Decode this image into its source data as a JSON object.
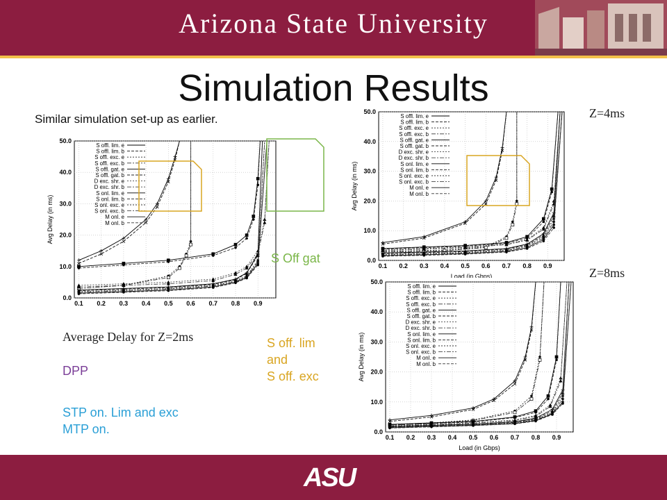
{
  "header": {
    "university": "Arizona State University",
    "logo_text": "ASU",
    "title": "Simulation Results",
    "subtitle": "Similar simulation set-up as earlier."
  },
  "labels": {
    "z2": "Average Delay for Z=2ms",
    "z4": "Z=4ms",
    "z8": "Z=8ms"
  },
  "annotations": {
    "s_off_gat": "S Off gat",
    "s_off_lim_line1": "S off. lim",
    "s_off_lim_line2": "and",
    "s_off_lim_line3": "S off. exc",
    "dpp": "DPP",
    "stp_line1": "STP on. Lim and exc",
    "stp_line2": "MTP on."
  },
  "colors": {
    "maroon": "#8c1d40",
    "gold": "#f2c04a",
    "annotation_green": "#7ab648",
    "annotation_gold": "#d9a521",
    "annotation_purple": "#7b3f98",
    "annotation_blue": "#2a9fd6"
  },
  "chart_data": [
    {
      "type": "line",
      "xlabel": "",
      "ylabel": "Avg Delay (in ms)",
      "x_ticks": [
        "0.1",
        "0.2",
        "0.3",
        "0.4",
        "0.5",
        "0.6",
        "0.7",
        "0.8",
        "0.9"
      ],
      "y_ticks": [
        "0.0",
        "10.0",
        "20.0",
        "30.0",
        "40.0",
        "50.0"
      ],
      "xlim": [
        0.08,
        0.98
      ],
      "ylim": [
        0,
        50
      ],
      "grid": true,
      "legend_position": "top-left",
      "series": [
        {
          "name": "S offl. lim. e",
          "x": [
            0.1,
            0.2,
            0.3,
            0.4,
            0.45,
            0.5,
            0.53,
            0.55
          ],
          "y": [
            12,
            15,
            19,
            25,
            30,
            38,
            45,
            50
          ]
        },
        {
          "name": "S offl. lim. b",
          "x": [
            0.1,
            0.2,
            0.3,
            0.4,
            0.45,
            0.5,
            0.53,
            0.55
          ],
          "y": [
            11,
            14,
            18,
            24,
            29,
            37,
            44,
            50
          ]
        },
        {
          "name": "S offl. exc. e",
          "x": [
            0.1,
            0.3,
            0.5,
            0.55,
            0.58,
            0.6,
            0.6
          ],
          "y": [
            3,
            4,
            7,
            10,
            14,
            18,
            50
          ]
        },
        {
          "name": "S offl. exc. b",
          "x": [
            0.1,
            0.3,
            0.5,
            0.55,
            0.58,
            0.6,
            0.6
          ],
          "y": [
            3,
            4,
            6.5,
            9.5,
            13.5,
            17,
            50
          ]
        },
        {
          "name": "S offl. gat. e",
          "x": [
            0.1,
            0.3,
            0.5,
            0.7,
            0.8,
            0.85,
            0.88,
            0.9,
            0.91
          ],
          "y": [
            10,
            11,
            12,
            14,
            17,
            20,
            26,
            38,
            50
          ]
        },
        {
          "name": "S offl. gat. b",
          "x": [
            0.1,
            0.3,
            0.5,
            0.7,
            0.8,
            0.85,
            0.88,
            0.9,
            0.91
          ],
          "y": [
            9.5,
            10.5,
            11.5,
            13.5,
            16,
            19,
            25,
            36,
            50
          ]
        },
        {
          "name": "D exc. shr. e",
          "x": [
            0.1,
            0.3,
            0.5,
            0.7,
            0.8,
            0.85,
            0.9,
            0.93,
            0.95
          ],
          "y": [
            4,
            4.5,
            5,
            6,
            8,
            10,
            15,
            25,
            50
          ]
        },
        {
          "name": "D exc. shr. b",
          "x": [
            0.1,
            0.3,
            0.5,
            0.7,
            0.8,
            0.85,
            0.9,
            0.93,
            0.95
          ],
          "y": [
            3.5,
            4,
            4.5,
            5.5,
            7.5,
            9.5,
            14,
            24,
            50
          ]
        },
        {
          "name": "S onl. lim. e",
          "x": [
            0.1,
            0.3,
            0.5,
            0.7,
            0.8,
            0.85,
            0.9,
            0.92
          ],
          "y": [
            2.5,
            3,
            3.5,
            4.5,
            6,
            8,
            14,
            50
          ]
        },
        {
          "name": "S onl. lim. b",
          "x": [
            0.1,
            0.3,
            0.5,
            0.7,
            0.8,
            0.85,
            0.9,
            0.92
          ],
          "y": [
            2.3,
            2.8,
            3.3,
            4.3,
            5.8,
            7.8,
            13.5,
            50
          ]
        },
        {
          "name": "S onl. exc. e",
          "x": [
            0.1,
            0.3,
            0.5,
            0.7,
            0.8,
            0.85,
            0.9,
            0.93
          ],
          "y": [
            2,
            2.5,
            3,
            4,
            5.5,
            7,
            12,
            50
          ]
        },
        {
          "name": "S onl. exc. b",
          "x": [
            0.1,
            0.3,
            0.5,
            0.7,
            0.8,
            0.85,
            0.9,
            0.93
          ],
          "y": [
            1.8,
            2.3,
            2.8,
            3.8,
            5.2,
            6.8,
            11.5,
            50
          ]
        },
        {
          "name": "M onl. e",
          "x": [
            0.1,
            0.3,
            0.5,
            0.7,
            0.8,
            0.85,
            0.9,
            0.94
          ],
          "y": [
            1.5,
            2,
            2.5,
            3.5,
            5,
            6.5,
            11,
            50
          ]
        },
        {
          "name": "M onl. b",
          "x": [
            0.1,
            0.3,
            0.5,
            0.7,
            0.8,
            0.85,
            0.9,
            0.94
          ],
          "y": [
            1.3,
            1.8,
            2.3,
            3.3,
            4.8,
            6.3,
            10.5,
            50
          ]
        }
      ]
    },
    {
      "type": "line",
      "xlabel": "Load (in Gbps)",
      "ylabel": "Avg Delay (in ms)",
      "x_ticks": [
        "0.1",
        "0.2",
        "0.3",
        "0.4",
        "0.5",
        "0.6",
        "0.7",
        "0.8",
        "0.9"
      ],
      "y_ticks": [
        "0.0",
        "10.0",
        "20.0",
        "30.0",
        "40.0",
        "50.0"
      ],
      "xlim": [
        0.08,
        0.98
      ],
      "ylim": [
        0,
        50
      ],
      "grid": true,
      "legend_position": "top-left",
      "series": [
        {
          "name": "S offl. lim. e",
          "x": [
            0.1,
            0.3,
            0.5,
            0.6,
            0.65,
            0.68,
            0.7
          ],
          "y": [
            6,
            8,
            13,
            20,
            28,
            38,
            50
          ]
        },
        {
          "name": "S offl. lim. b",
          "x": [
            0.1,
            0.3,
            0.5,
            0.6,
            0.65,
            0.68,
            0.7
          ],
          "y": [
            5.5,
            7.5,
            12.5,
            19,
            27,
            37,
            50
          ]
        },
        {
          "name": "S offl. exc. e",
          "x": [
            0.1,
            0.4,
            0.6,
            0.7,
            0.73,
            0.75,
            0.75
          ],
          "y": [
            3,
            3.5,
            4.5,
            8,
            13,
            20,
            50
          ]
        },
        {
          "name": "S offl. exc. b",
          "x": [
            0.1,
            0.4,
            0.6,
            0.7,
            0.73,
            0.75,
            0.75
          ],
          "y": [
            2.8,
            3.3,
            4.3,
            7.5,
            12,
            19,
            50
          ]
        },
        {
          "name": "S offl. gat. e",
          "x": [
            0.1,
            0.3,
            0.5,
            0.7,
            0.8,
            0.88,
            0.92,
            0.95
          ],
          "y": [
            4,
            4.5,
            5,
            6,
            8,
            14,
            24,
            50
          ]
        },
        {
          "name": "S offl. gat. b",
          "x": [
            0.1,
            0.3,
            0.5,
            0.7,
            0.8,
            0.88,
            0.92,
            0.95
          ],
          "y": [
            3.8,
            4.3,
            4.8,
            5.8,
            7.5,
            13,
            23,
            50
          ]
        },
        {
          "name": "D exc. shr. e",
          "x": [
            0.1,
            0.3,
            0.5,
            0.7,
            0.8,
            0.88,
            0.93,
            0.96
          ],
          "y": [
            3.5,
            4,
            4.5,
            5.5,
            7,
            11,
            20,
            50
          ]
        },
        {
          "name": "D exc. shr. b",
          "x": [
            0.1,
            0.3,
            0.5,
            0.7,
            0.8,
            0.88,
            0.93,
            0.96
          ],
          "y": [
            3.3,
            3.8,
            4.3,
            5.3,
            6.8,
            10.5,
            19,
            50
          ]
        },
        {
          "name": "S onl. lim. e",
          "x": [
            0.1,
            0.3,
            0.5,
            0.7,
            0.8,
            0.88,
            0.93,
            0.96
          ],
          "y": [
            2.5,
            2.8,
            3.2,
            4,
            5.5,
            9,
            16,
            50
          ]
        },
        {
          "name": "S onl. lim. b",
          "x": [
            0.1,
            0.3,
            0.5,
            0.7,
            0.8,
            0.88,
            0.93,
            0.96
          ],
          "y": [
            2.3,
            2.6,
            3,
            3.8,
            5.2,
            8.5,
            15,
            50
          ]
        },
        {
          "name": "S onl. exc. e",
          "x": [
            0.1,
            0.3,
            0.5,
            0.7,
            0.8,
            0.88,
            0.93,
            0.97
          ],
          "y": [
            2,
            2.3,
            2.7,
            3.5,
            5,
            8,
            14,
            50
          ]
        },
        {
          "name": "S onl. exc. b",
          "x": [
            0.1,
            0.3,
            0.5,
            0.7,
            0.8,
            0.88,
            0.93,
            0.97
          ],
          "y": [
            1.8,
            2.1,
            2.5,
            3.3,
            4.7,
            7.5,
            13,
            50
          ]
        },
        {
          "name": "M onl. e",
          "x": [
            0.1,
            0.3,
            0.5,
            0.7,
            0.8,
            0.88,
            0.93,
            0.97
          ],
          "y": [
            1.6,
            1.9,
            2.3,
            3,
            4.3,
            7,
            12,
            50
          ]
        },
        {
          "name": "M onl. b",
          "x": [
            0.1,
            0.3,
            0.5,
            0.7,
            0.8,
            0.88,
            0.93,
            0.97
          ],
          "y": [
            1.4,
            1.7,
            2.1,
            2.8,
            4,
            6.5,
            11,
            50
          ]
        }
      ]
    },
    {
      "type": "line",
      "xlabel": "Load (in Gbps)",
      "ylabel": "Avg Delay (in ms)",
      "x_ticks": [
        "0.1",
        "0.2",
        "0.3",
        "0.4",
        "0.5",
        "0.6",
        "0.7",
        "0.8",
        "0.9"
      ],
      "y_ticks": [
        "0.0",
        "10.0",
        "20.0",
        "30.0",
        "40.0",
        "50.0"
      ],
      "xlim": [
        0.08,
        0.98
      ],
      "ylim": [
        0,
        50
      ],
      "grid": true,
      "legend_position": "top-left",
      "series": [
        {
          "name": "S offl. lim. e",
          "x": [
            0.1,
            0.3,
            0.5,
            0.6,
            0.7,
            0.75,
            0.78,
            0.8
          ],
          "y": [
            4,
            5.5,
            8,
            11,
            17,
            25,
            35,
            50
          ]
        },
        {
          "name": "S offl. lim. b",
          "x": [
            0.1,
            0.3,
            0.5,
            0.6,
            0.7,
            0.75,
            0.78,
            0.8
          ],
          "y": [
            3.5,
            5,
            7.5,
            10.5,
            16,
            24,
            34,
            50
          ]
        },
        {
          "name": "S offl. exc. e",
          "x": [
            0.1,
            0.3,
            0.5,
            0.7,
            0.78,
            0.82,
            0.84
          ],
          "y": [
            2.5,
            3,
            4,
            7,
            12,
            25,
            50
          ]
        },
        {
          "name": "S offl. exc. b",
          "x": [
            0.1,
            0.3,
            0.5,
            0.7,
            0.78,
            0.82,
            0.84
          ],
          "y": [
            2.3,
            2.8,
            3.8,
            6.5,
            11,
            24,
            50
          ]
        },
        {
          "name": "S offl. gat. e",
          "x": [
            0.1,
            0.3,
            0.5,
            0.7,
            0.8,
            0.86,
            0.9,
            0.92
          ],
          "y": [
            2.5,
            3,
            3.5,
            5,
            7,
            12,
            25,
            50
          ]
        },
        {
          "name": "S offl. gat. b",
          "x": [
            0.1,
            0.3,
            0.5,
            0.7,
            0.8,
            0.86,
            0.9,
            0.92
          ],
          "y": [
            2.3,
            2.8,
            3.3,
            4.8,
            6.5,
            11,
            24,
            50
          ]
        },
        {
          "name": "D exc. shr. e",
          "x": [
            0.1,
            0.3,
            0.5,
            0.7,
            0.8,
            0.87,
            0.92,
            0.95
          ],
          "y": [
            2,
            2.5,
            3,
            4,
            5.5,
            9,
            18,
            50
          ]
        },
        {
          "name": "D exc. shr. b",
          "x": [
            0.1,
            0.3,
            0.5,
            0.7,
            0.8,
            0.87,
            0.92,
            0.95
          ],
          "y": [
            1.9,
            2.4,
            2.9,
            3.8,
            5.2,
            8.5,
            17,
            50
          ]
        },
        {
          "name": "S onl. lim. e",
          "x": [
            0.1,
            0.3,
            0.5,
            0.7,
            0.8,
            0.88,
            0.93,
            0.96
          ],
          "y": [
            1.8,
            2.2,
            2.6,
            3.4,
            4.6,
            7.5,
            14,
            50
          ]
        },
        {
          "name": "S onl. lim. b",
          "x": [
            0.1,
            0.3,
            0.5,
            0.7,
            0.8,
            0.88,
            0.93,
            0.96
          ],
          "y": [
            1.7,
            2.1,
            2.5,
            3.2,
            4.4,
            7,
            13,
            50
          ]
        },
        {
          "name": "S onl. exc. e",
          "x": [
            0.1,
            0.3,
            0.5,
            0.7,
            0.8,
            0.88,
            0.93,
            0.96
          ],
          "y": [
            1.6,
            2,
            2.4,
            3,
            4.2,
            6.5,
            12,
            50
          ]
        },
        {
          "name": "S onl. exc. b",
          "x": [
            0.1,
            0.3,
            0.5,
            0.7,
            0.8,
            0.88,
            0.93,
            0.96
          ],
          "y": [
            1.5,
            1.9,
            2.3,
            2.9,
            4,
            6.2,
            11,
            50
          ]
        },
        {
          "name": "M onl. e",
          "x": [
            0.1,
            0.3,
            0.5,
            0.7,
            0.8,
            0.88,
            0.93,
            0.97
          ],
          "y": [
            1.4,
            1.8,
            2.2,
            2.8,
            3.8,
            6,
            10,
            50
          ]
        },
        {
          "name": "M onl. b",
          "x": [
            0.1,
            0.3,
            0.5,
            0.7,
            0.8,
            0.88,
            0.93,
            0.97
          ],
          "y": [
            1.3,
            1.7,
            2.1,
            2.7,
            3.6,
            5.8,
            9.5,
            50
          ]
        }
      ]
    }
  ]
}
